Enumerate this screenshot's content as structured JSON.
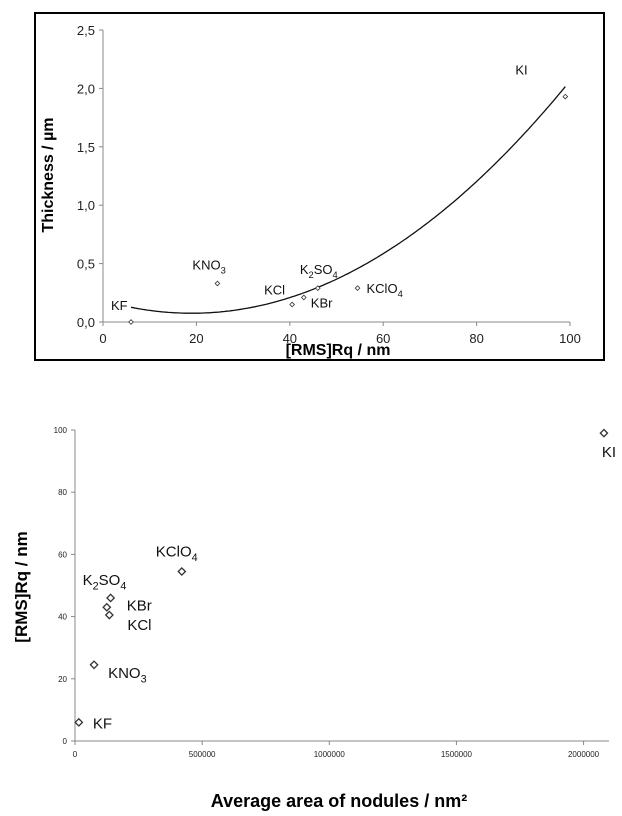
{
  "chart_data": [
    {
      "type": "scatter",
      "xlabel": "[RMS]Rq / nm",
      "ylabel": "Thickness / µm",
      "xlim": [
        0,
        100
      ],
      "ylim": [
        0,
        2.5
      ],
      "x_ticks": [
        "0",
        "20",
        "40",
        "60",
        "80",
        "100"
      ],
      "y_ticks": [
        "0,0",
        "0,5",
        "1,0",
        "1,5",
        "2,0",
        "2,5"
      ],
      "grid": false,
      "legend": "none",
      "trendline": "polynomial (2nd order)",
      "points": [
        {
          "label": "KF",
          "label_sub": "",
          "label_suffix": "",
          "x": 6,
          "y": 0.0
        },
        {
          "label": "KNO",
          "label_sub": "3",
          "label_suffix": "",
          "x": 24.5,
          "y": 0.33
        },
        {
          "label": "KCl",
          "label_sub": "",
          "label_suffix": "",
          "x": 40.5,
          "y": 0.15
        },
        {
          "label": "KBr",
          "label_sub": "",
          "label_suffix": "",
          "x": 43,
          "y": 0.21
        },
        {
          "label": "K",
          "label_sub": "2",
          "label_suffix": "SO4",
          "x": 46,
          "y": 0.29
        },
        {
          "label": "KClO",
          "label_sub": "4",
          "label_suffix": "",
          "x": 54.5,
          "y": 0.29
        },
        {
          "label": "KI",
          "label_sub": "",
          "label_suffix": "",
          "x": 99,
          "y": 1.93
        }
      ],
      "fit_coefficients": {
        "a": 0.000303,
        "b": -0.0115,
        "c": 0.1841
      }
    },
    {
      "type": "scatter",
      "xlabel": "Average area of nodules / nm²",
      "ylabel": "[RMS]Rq / nm",
      "xlim": [
        0,
        2100000
      ],
      "ylim": [
        0,
        100
      ],
      "x_ticks": [
        "0",
        "500000",
        "1000000",
        "1500000",
        "2000000"
      ],
      "y_ticks": [
        "0",
        "20",
        "40",
        "60",
        "80",
        "100"
      ],
      "grid": false,
      "legend": "none",
      "points": [
        {
          "label": "KF",
          "label_sub": "",
          "x": 15000,
          "y": 6
        },
        {
          "label": "KNO",
          "label_sub": "3",
          "x": 75000,
          "y": 24.5
        },
        {
          "label": "KCl",
          "label_sub": "",
          "x": 135000,
          "y": 40.5
        },
        {
          "label": "KBr",
          "label_sub": "",
          "x": 125000,
          "y": 43
        },
        {
          "label": "K",
          "label_sub": "2",
          "label_suffix": "SO4",
          "x": 140000,
          "y": 46
        },
        {
          "label": "KClO",
          "label_sub": "4",
          "x": 420000,
          "y": 54.5
        },
        {
          "label": "KI",
          "label_sub": "",
          "x": 2080000,
          "y": 99
        }
      ]
    }
  ]
}
